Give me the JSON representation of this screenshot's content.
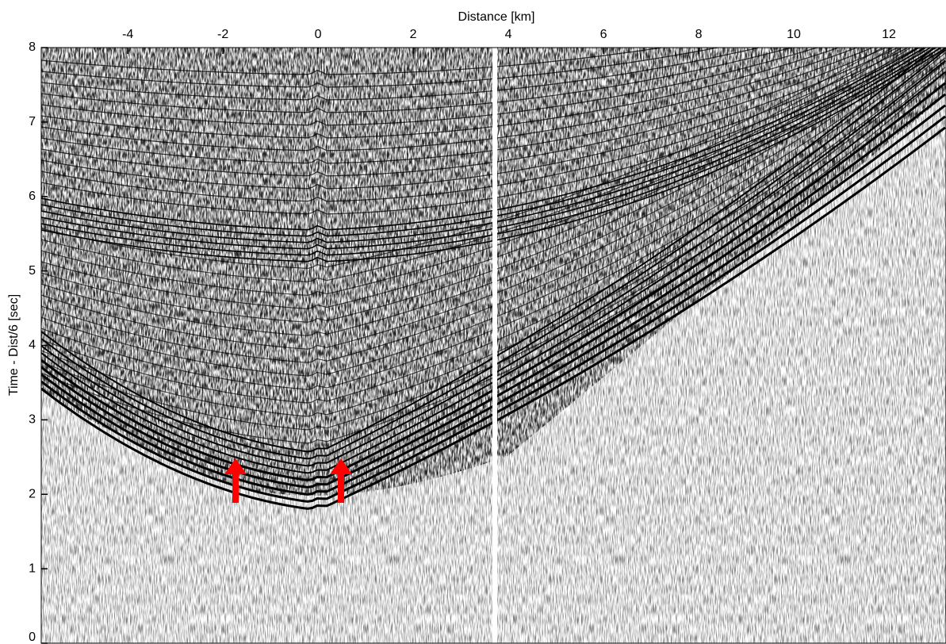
{
  "chart_data": {
    "type": "seismic",
    "xlabel": "Distance [km]",
    "ylabel": "Time - Dist/6 [sec]",
    "xlim": [
      -5.82,
      13.2
    ],
    "xticks": [
      -4,
      -2,
      0,
      2,
      4,
      6,
      8,
      10,
      12
    ],
    "ylim": [
      0,
      8
    ],
    "yticks": [
      0,
      1,
      2,
      3,
      4,
      5,
      6,
      7,
      8
    ]
  }
}
